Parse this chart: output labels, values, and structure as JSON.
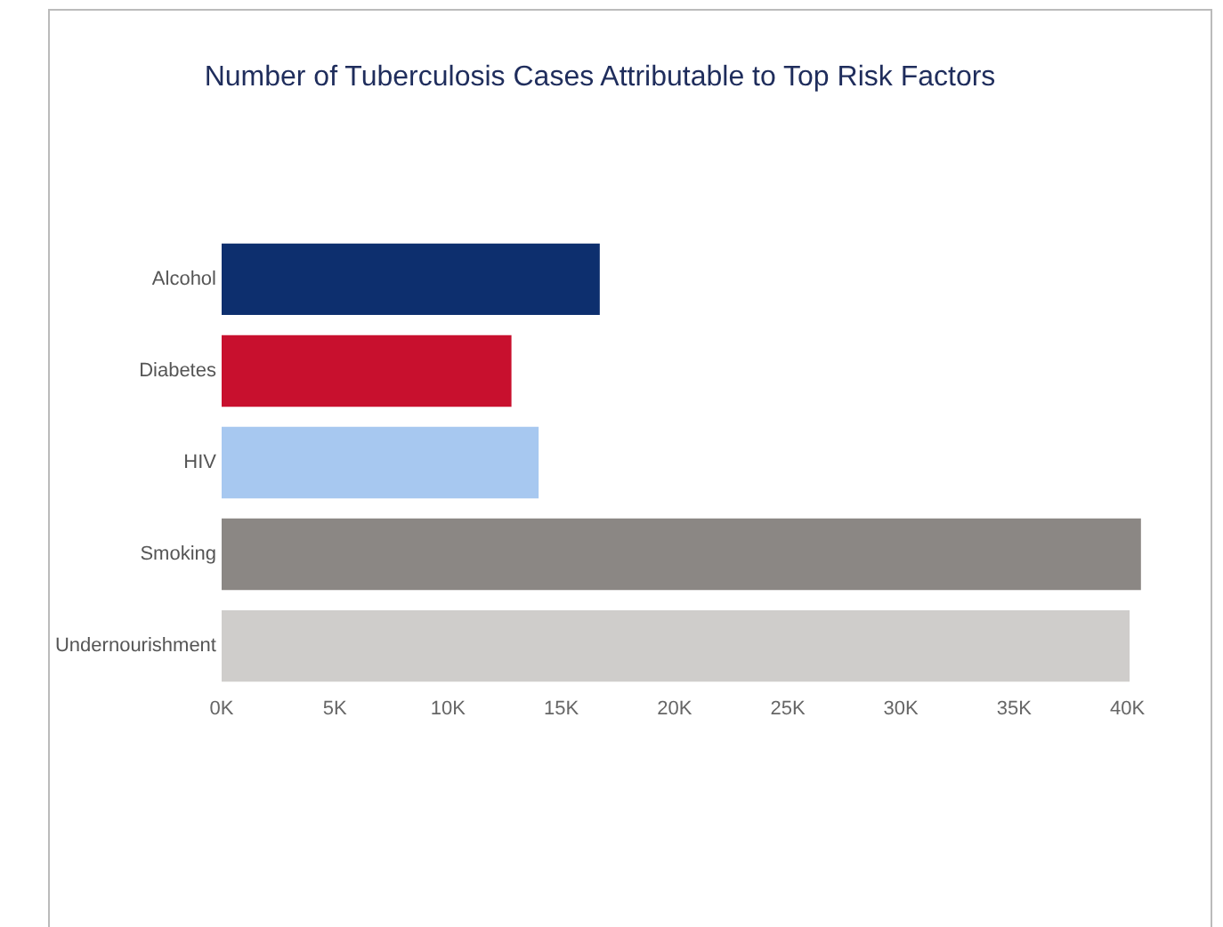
{
  "chart_data": {
    "type": "bar",
    "orientation": "horizontal",
    "title": "Number of Tuberculosis Cases Attributable to Top Risk Factors",
    "categories": [
      "Alcohol",
      "Diabetes",
      "HIV",
      "Smoking",
      "Undernourishment"
    ],
    "values": [
      16700,
      12800,
      14000,
      40600,
      40100
    ],
    "colors": [
      "#0d2f6e",
      "#c8102e",
      "#a7c8f0",
      "#8b8784",
      "#cfcdcb"
    ],
    "xlim": [
      0,
      41000
    ],
    "xticks": [
      {
        "value": 0,
        "label": "0K"
      },
      {
        "value": 5000,
        "label": "5K"
      },
      {
        "value": 10000,
        "label": "10K"
      },
      {
        "value": 15000,
        "label": "15K"
      },
      {
        "value": 20000,
        "label": "20K"
      },
      {
        "value": 25000,
        "label": "25K"
      },
      {
        "value": 30000,
        "label": "30K"
      },
      {
        "value": 35000,
        "label": "35K"
      },
      {
        "value": 40000,
        "label": "40K"
      }
    ],
    "grid": false,
    "legend": false
  }
}
